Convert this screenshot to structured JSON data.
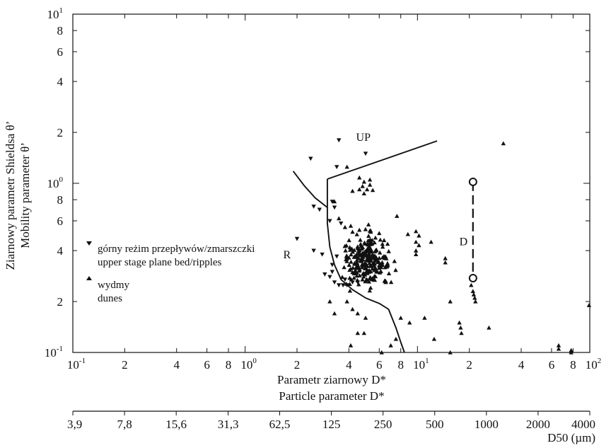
{
  "chart_data": {
    "type": "scatter",
    "x_scale": "log",
    "y_scale": "log",
    "xlim": [
      0.1,
      100
    ],
    "ylim": [
      0.1,
      10
    ],
    "xlabel": [
      "Parametr ziarnowy D*",
      "Particle parameter D*"
    ],
    "ylabel": [
      "Ziarnowy parametr Shieldsa θ’",
      "Mobility parameter θ’"
    ],
    "x_ticks": [
      {
        "v": 0.1,
        "base": "10",
        "exp": "-1"
      },
      {
        "v": 0.2,
        "label": "2"
      },
      {
        "v": 0.4,
        "label": "4"
      },
      {
        "v": 0.6,
        "label": "6"
      },
      {
        "v": 0.8,
        "label": "8"
      },
      {
        "v": 1,
        "base": "10",
        "exp": "0"
      },
      {
        "v": 2,
        "label": "2"
      },
      {
        "v": 4,
        "label": "4"
      },
      {
        "v": 6,
        "label": "6"
      },
      {
        "v": 8,
        "label": "8"
      },
      {
        "v": 10,
        "base": "10",
        "exp": "1"
      },
      {
        "v": 20,
        "label": "2"
      },
      {
        "v": 40,
        "label": "4"
      },
      {
        "v": 60,
        "label": "6"
      },
      {
        "v": 80,
        "label": "8"
      },
      {
        "v": 100,
        "base": "10",
        "exp": "2"
      }
    ],
    "y_ticks": [
      {
        "v": 0.1,
        "base": "10",
        "exp": "-1"
      },
      {
        "v": 0.2,
        "label": "2"
      },
      {
        "v": 0.4,
        "label": "4"
      },
      {
        "v": 0.6,
        "label": "6"
      },
      {
        "v": 0.8,
        "label": "8"
      },
      {
        "v": 1,
        "base": "10",
        "exp": "0"
      },
      {
        "v": 2,
        "label": "2"
      },
      {
        "v": 4,
        "label": "4"
      },
      {
        "v": 6,
        "label": "6"
      },
      {
        "v": 8,
        "label": "8"
      },
      {
        "v": 10,
        "base": "10",
        "exp": "1"
      }
    ],
    "secondary_x_axis": {
      "label": "D50 (µm)",
      "ticks": [
        {
          "d": 3.9,
          "label": "3,9"
        },
        {
          "d": 7.8,
          "label": "7,8"
        },
        {
          "d": 15.6,
          "label": "15,6"
        },
        {
          "d": 31.3,
          "label": "31,3"
        },
        {
          "d": 62.5,
          "label": "62,5"
        },
        {
          "d": 125,
          "label": "125"
        },
        {
          "d": 250,
          "label": "250"
        },
        {
          "d": 500,
          "label": "500"
        },
        {
          "d": 1000,
          "label": "1000"
        },
        {
          "d": 2000,
          "label": "2000"
        },
        {
          "d": 4000,
          "label": "4000"
        }
      ]
    },
    "legend": [
      {
        "marker": "down-triangle",
        "lines": [
          "górny reżim przepływów/zmarszczki",
          "upper stage plane bed/ripples"
        ]
      },
      {
        "marker": "up-triangle",
        "lines": [
          "wydmy",
          "dunes"
        ]
      }
    ],
    "region_labels": [
      {
        "text": "UP",
        "x": 4.85,
        "y": 1.78
      },
      {
        "text": "R",
        "x": 1.75,
        "y": 0.36
      },
      {
        "text": "D",
        "x": 18.5,
        "y": 0.43
      }
    ],
    "boundary_lines": [
      {
        "name": "UP-upper",
        "points": [
          [
            3,
            1.06
          ],
          [
            13,
            1.78
          ]
        ]
      },
      {
        "name": "UP-left",
        "points": [
          [
            1.9,
            1.18
          ],
          [
            2.2,
            0.97
          ],
          [
            2.55,
            0.82
          ],
          [
            2.85,
            0.75
          ],
          [
            3,
            0.72
          ]
        ]
      },
      {
        "name": "R-D",
        "points": [
          [
            3,
            1.06
          ],
          [
            3,
            0.58
          ],
          [
            3.1,
            0.42
          ],
          [
            3.3,
            0.33
          ],
          [
            3.6,
            0.27
          ],
          [
            4.2,
            0.235
          ],
          [
            5,
            0.21
          ],
          [
            6,
            0.195
          ],
          [
            6.8,
            0.18
          ],
          [
            7.5,
            0.14
          ],
          [
            8,
            0.115
          ],
          [
            8.4,
            0.1
          ]
        ]
      },
      {
        "name": "D-dashed",
        "points": [
          [
            21,
            1.02
          ],
          [
            21,
            0.275
          ]
        ],
        "dashed": true
      }
    ],
    "open_circles": [
      [
        21,
        1.02
      ],
      [
        21,
        0.275
      ]
    ],
    "series": [
      {
        "name": "górny reżim przepływów/zmarszczki",
        "marker": "down-triangle",
        "points": [
          [
            3.5,
            1.8
          ],
          [
            2.4,
            1.4
          ],
          [
            5,
            1.5
          ],
          [
            3.4,
            1.25
          ],
          [
            3.2,
            0.78
          ],
          [
            3.3,
            0.72
          ],
          [
            2.7,
            0.7
          ],
          [
            2.5,
            0.73
          ],
          [
            3.1,
            0.6
          ],
          [
            3.6,
            0.58
          ],
          [
            2,
            0.47
          ],
          [
            2.5,
            0.4
          ],
          [
            2.8,
            0.38
          ],
          [
            3.4,
            0.37
          ],
          [
            3.2,
            0.3
          ],
          [
            2.9,
            0.29
          ],
          [
            3.1,
            0.28
          ],
          [
            3.3,
            0.26
          ],
          [
            3.5,
            0.25
          ],
          [
            3.7,
            0.25
          ],
          [
            3.9,
            0.25
          ],
          [
            4.2,
            0.26
          ],
          [
            4.5,
            0.26
          ],
          [
            3.8,
            0.27
          ],
          [
            3.2,
            0.33
          ]
        ]
      },
      {
        "name": "wydmy",
        "marker": "up-triangle",
        "points": [
          [
            3.9,
            1.25
          ],
          [
            4.6,
            1.08
          ],
          [
            4.9,
            1.02
          ],
          [
            5.3,
            1.05
          ],
          [
            4.8,
            0.96
          ],
          [
            5.3,
            0.98
          ],
          [
            4.6,
            0.92
          ],
          [
            4.9,
            0.87
          ],
          [
            5.1,
            0.92
          ],
          [
            5.5,
            0.91
          ],
          [
            4.2,
            0.9
          ],
          [
            3.3,
            0.78
          ],
          [
            3.5,
            0.62
          ],
          [
            3.8,
            0.55
          ],
          [
            4.1,
            0.56
          ],
          [
            4.6,
            0.53
          ],
          [
            5.2,
            0.57
          ],
          [
            7.6,
            0.64
          ],
          [
            8.8,
            0.5
          ],
          [
            9.8,
            0.52
          ],
          [
            9.8,
            0.45
          ],
          [
            9.8,
            0.4
          ],
          [
            9.8,
            0.38
          ],
          [
            10.2,
            0.49
          ],
          [
            10.2,
            0.43
          ],
          [
            12,
            0.45
          ],
          [
            14.5,
            0.36
          ],
          [
            14.5,
            0.34
          ],
          [
            15.5,
            0.2
          ],
          [
            15.5,
            0.1
          ],
          [
            17.5,
            0.15
          ],
          [
            17.8,
            0.14
          ],
          [
            18,
            0.13
          ],
          [
            20.5,
            0.25
          ],
          [
            21,
            0.23
          ],
          [
            21.2,
            0.22
          ],
          [
            21.5,
            0.21
          ],
          [
            21.7,
            0.2
          ],
          [
            26,
            0.14
          ],
          [
            31.5,
            1.72
          ],
          [
            66,
            0.11
          ],
          [
            66,
            0.105
          ],
          [
            78,
            0.103
          ],
          [
            78,
            0.1
          ],
          [
            99,
            0.19
          ],
          [
            3.9,
            0.2
          ],
          [
            4.2,
            0.18
          ],
          [
            4.5,
            0.17
          ],
          [
            5,
            0.16
          ],
          [
            4.5,
            0.13
          ],
          [
            4.1,
            0.11
          ],
          [
            7,
            0.11
          ],
          [
            6.2,
            0.1
          ],
          [
            7.5,
            0.12
          ],
          [
            8,
            0.16
          ],
          [
            9,
            0.15
          ],
          [
            11,
            0.16
          ],
          [
            12.5,
            0.12
          ],
          [
            4.9,
            0.13
          ],
          [
            3.3,
            0.17
          ],
          [
            3.1,
            0.2
          ]
        ],
        "cluster": {
          "x_range": [
            3.5,
            7.5
          ],
          "y_range": [
            0.22,
            0.55
          ],
          "x_center": 5.1,
          "y_center": 0.35,
          "count": 260
        }
      }
    ]
  }
}
